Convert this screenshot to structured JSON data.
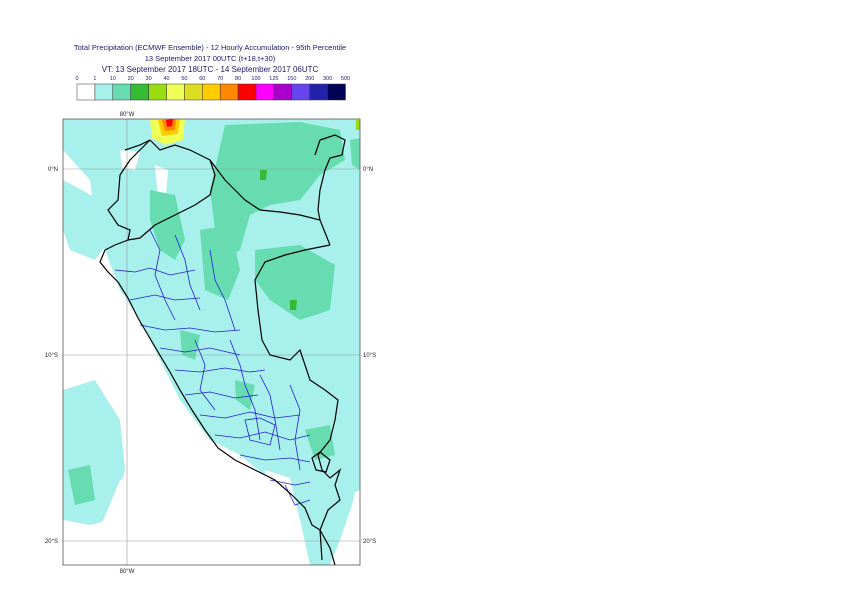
{
  "title": {
    "line1": "Total Precipitation (ECMWF Ensemble) - 12 Hourly Accumulation - 95th Percentile",
    "line2": "13 September 2017 00UTC (t+18,t+30)",
    "line3": "VT: 13 September 2017 18UTC - 14 September 2017 06UTC"
  },
  "legend": {
    "thresholds": [
      "0",
      "1",
      "10",
      "20",
      "30",
      "40",
      "50",
      "60",
      "70",
      "80",
      "100",
      "125",
      "150",
      "200",
      "300",
      "500"
    ],
    "colors": [
      "#ffffff",
      "#a8f0ec",
      "#66dcb0",
      "#33bb33",
      "#99dd11",
      "#eeff55",
      "#dddd22",
      "#ffcc00",
      "#ff8800",
      "#ff0000",
      "#ff00ff",
      "#aa00cc",
      "#6644ee",
      "#2222aa",
      "#000055"
    ]
  },
  "map": {
    "lon_top": "80°W",
    "lon_bottom": "80°W",
    "lat_labels": [
      "0°N",
      "10°S",
      "20°S"
    ]
  }
}
